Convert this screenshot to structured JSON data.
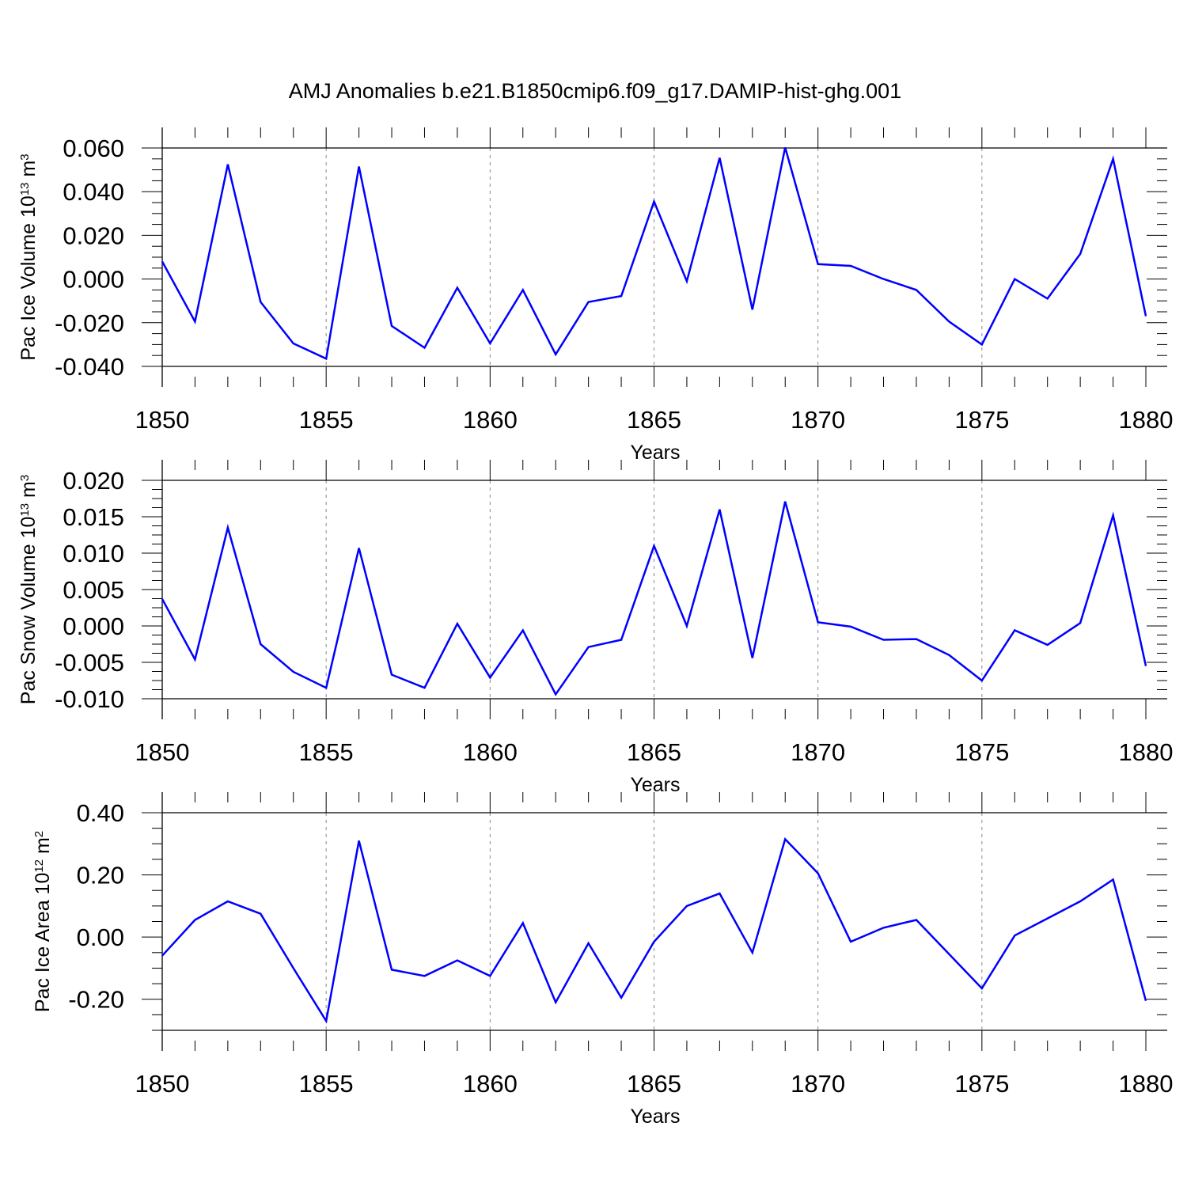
{
  "figure": {
    "title": "AMJ Anomalies b.e21.B1850cmip6.f09_g17.DAMIP-hist-ghg.001",
    "line_color": "#0000ff"
  },
  "chart_data": [
    {
      "type": "line",
      "title": "",
      "xlabel": "Years",
      "ylabel_main": "Pac Ice Volume 10",
      "ylabel_exp": "13",
      "ylabel_unit": " m",
      "ylabel_unit_exp": "3",
      "xlim": [
        1850,
        1880
      ],
      "ylim": [
        -0.04,
        0.06
      ],
      "x_ticks": [
        1850,
        1855,
        1860,
        1865,
        1870,
        1875,
        1880
      ],
      "y_ticks": [
        "-0.040",
        "-0.020",
        "0.000",
        "0.020",
        "0.040",
        "0.060"
      ],
      "y_tick_values": [
        -0.04,
        -0.02,
        0.0,
        0.02,
        0.04,
        0.06
      ],
      "grid_x": [
        1855,
        1860,
        1865,
        1870,
        1875
      ],
      "x": [
        1850,
        1851,
        1852,
        1853,
        1854,
        1855,
        1856,
        1857,
        1858,
        1859,
        1860,
        1861,
        1862,
        1863,
        1864,
        1865,
        1866,
        1867,
        1868,
        1869,
        1870,
        1871,
        1872,
        1873,
        1874,
        1875,
        1876,
        1877,
        1878,
        1879,
        1880
      ],
      "series": [
        {
          "name": "Pac Ice Volume",
          "values": [
            0.008,
            -0.0195,
            0.0525,
            -0.0105,
            -0.0295,
            -0.0365,
            0.0515,
            -0.0215,
            -0.0315,
            -0.004,
            -0.0295,
            -0.005,
            -0.0345,
            -0.0105,
            -0.0078,
            0.0355,
            -0.001,
            0.0555,
            -0.014,
            0.0602,
            0.0068,
            0.006,
            0.0,
            -0.005,
            -0.0195,
            -0.03,
            0.0,
            -0.009,
            0.0115,
            0.055,
            -0.017
          ]
        }
      ]
    },
    {
      "type": "line",
      "title": "",
      "xlabel": "Years",
      "ylabel_main": "Pac Snow Volume 10",
      "ylabel_exp": "13",
      "ylabel_unit": " m",
      "ylabel_unit_exp": "3",
      "xlim": [
        1850,
        1880
      ],
      "ylim": [
        -0.01,
        0.02
      ],
      "x_ticks": [
        1850,
        1855,
        1860,
        1865,
        1870,
        1875,
        1880
      ],
      "y_ticks": [
        "-0.010",
        "-0.005",
        "0.000",
        "0.005",
        "0.010",
        "0.015",
        "0.020"
      ],
      "y_tick_values": [
        -0.01,
        -0.005,
        0.0,
        0.005,
        0.01,
        0.015,
        0.02
      ],
      "grid_x": [
        1855,
        1860,
        1865,
        1870,
        1875
      ],
      "x": [
        1850,
        1851,
        1852,
        1853,
        1854,
        1855,
        1856,
        1857,
        1858,
        1859,
        1860,
        1861,
        1862,
        1863,
        1864,
        1865,
        1866,
        1867,
        1868,
        1869,
        1870,
        1871,
        1872,
        1873,
        1874,
        1875,
        1876,
        1877,
        1878,
        1879,
        1880
      ],
      "series": [
        {
          "name": "Pac Snow Volume",
          "values": [
            0.0037,
            -0.0046,
            0.0135,
            -0.0025,
            -0.0063,
            -0.0085,
            0.0107,
            -0.0067,
            -0.0085,
            0.0003,
            -0.0071,
            -0.0006,
            -0.0094,
            -0.0029,
            -0.0019,
            0.011,
            0.0,
            0.016,
            -0.0044,
            0.0171,
            0.0005,
            -0.0001,
            -0.0019,
            -0.0018,
            -0.004,
            -0.0075,
            -0.0006,
            -0.0026,
            0.0004,
            0.0152,
            -0.0055
          ]
        }
      ]
    },
    {
      "type": "line",
      "title": "",
      "xlabel": "Years",
      "ylabel_main": "Pac Ice Area 10",
      "ylabel_exp": "12",
      "ylabel_unit": " m",
      "ylabel_unit_exp": "2",
      "xlim": [
        1850,
        1880
      ],
      "ylim": [
        -0.3,
        0.4
      ],
      "x_ticks": [
        1850,
        1855,
        1860,
        1865,
        1870,
        1875,
        1880
      ],
      "y_ticks": [
        "-0.20",
        "0.00",
        "0.20",
        "0.40"
      ],
      "y_tick_values": [
        -0.2,
        0.0,
        0.2,
        0.4
      ],
      "grid_x": [
        1855,
        1860,
        1865,
        1870,
        1875
      ],
      "x": [
        1850,
        1851,
        1852,
        1853,
        1854,
        1855,
        1856,
        1857,
        1858,
        1859,
        1860,
        1861,
        1862,
        1863,
        1864,
        1865,
        1866,
        1867,
        1868,
        1869,
        1870,
        1871,
        1872,
        1873,
        1874,
        1875,
        1876,
        1877,
        1878,
        1879,
        1880
      ],
      "series": [
        {
          "name": "Pac Ice Area",
          "values": [
            -0.06,
            0.055,
            0.115,
            0.075,
            -0.1,
            -0.27,
            0.31,
            -0.105,
            -0.125,
            -0.075,
            -0.125,
            0.045,
            -0.21,
            -0.02,
            -0.195,
            -0.015,
            0.1,
            0.14,
            -0.05,
            0.315,
            0.205,
            -0.015,
            0.03,
            0.055,
            -0.055,
            -0.165,
            0.005,
            0.06,
            0.115,
            0.185,
            -0.205
          ]
        }
      ]
    }
  ]
}
